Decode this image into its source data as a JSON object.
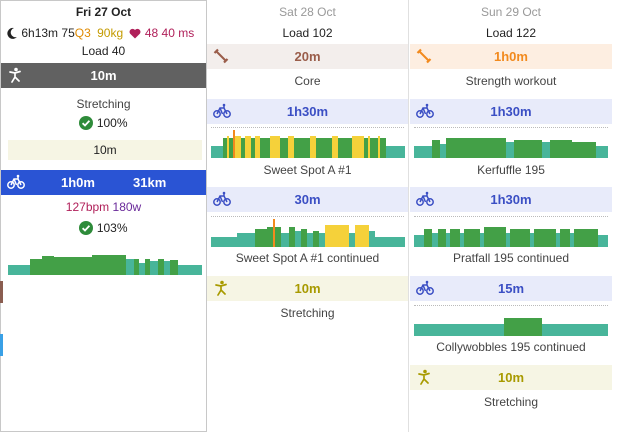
{
  "days": [
    {
      "date": "Fri 27 Oct",
      "wellness": {
        "sleep": "6h13m",
        "readiness": "75",
        "quality": "Q3",
        "weight": "90kg",
        "resting_hr": "48",
        "hrv": "40 ms"
      },
      "load": "Load 40",
      "activities": [
        {
          "type": "Stretching",
          "duration": "10m",
          "name": "Stretching",
          "compliance": "100%",
          "completed_duration": "10m"
        },
        {
          "type": "Ride",
          "duration": "1h0m",
          "distance": "31km",
          "avg_hr": "127bpm",
          "avg_power": "180w",
          "compliance": "103%"
        }
      ]
    },
    {
      "date": "Sat 28 Oct",
      "load": "Load 102",
      "activities": [
        {
          "type": "Strength",
          "duration": "20m",
          "name": "Core"
        },
        {
          "type": "Ride",
          "duration": "1h30m",
          "name": "Sweet Spot A #1"
        },
        {
          "type": "Ride",
          "duration": "30m",
          "name": "Sweet Spot A #1 continued"
        },
        {
          "type": "Stretching",
          "duration": "10m",
          "name": "Stretching"
        }
      ]
    },
    {
      "date": "Sun 29 Oct",
      "load": "Load 122",
      "activities": [
        {
          "type": "Strength",
          "duration": "1h0m",
          "name": "Strength workout"
        },
        {
          "type": "Ride",
          "duration": "1h30m",
          "name": "Kerfuffle 195"
        },
        {
          "type": "Ride",
          "duration": "1h30m",
          "name": "Pratfall 195 continued"
        },
        {
          "type": "Ride",
          "duration": "15m",
          "name": "Collywobbles 195 continued"
        },
        {
          "type": "Stretching",
          "duration": "10m",
          "name": "Stretching"
        }
      ]
    }
  ],
  "colors": {
    "ride": "#3b4fc4",
    "ride_bg": "#e8ebfa",
    "strength": "#9a5d4a",
    "strength_bg": "#f3eeec",
    "strength_orange": "#f28a1e",
    "strength_orange_bg": "#fdeee1",
    "stretch": "#a89a00",
    "stretch_bg": "#f6f5e4",
    "completed_bg": "#616161",
    "ride_done_bg": "#2a54d4",
    "green": "#43a047",
    "teal": "#48b59a",
    "yellow": "#f5d13a"
  },
  "icons": {
    "sleep": "moon-icon",
    "heart": "heart-icon",
    "check": "check-circle-icon",
    "ride": "bike-icon",
    "strength": "dumbbell-icon",
    "stretch": "stretch-icon"
  }
}
